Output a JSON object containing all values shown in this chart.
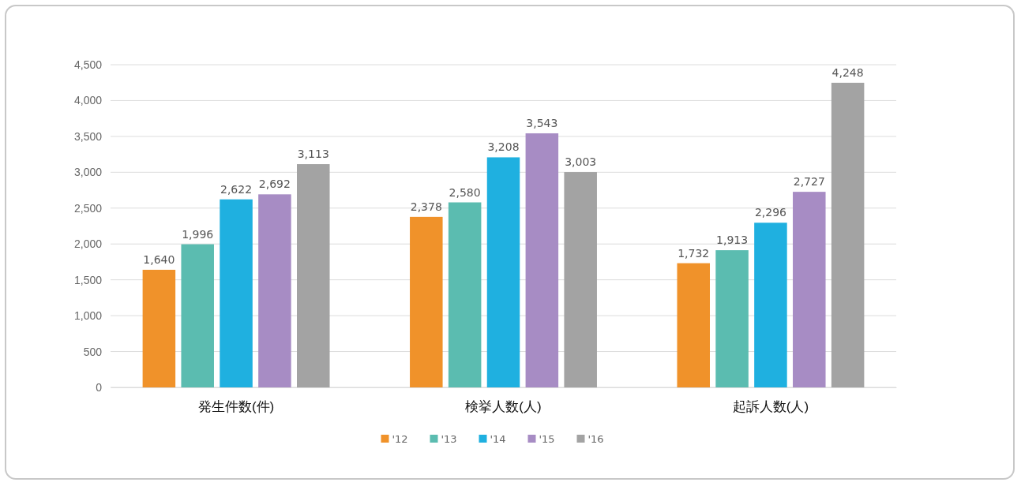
{
  "chart_data": {
    "type": "bar",
    "categories": [
      "発生件数(件)",
      "検挙人数(人)",
      "起訴人数(人)"
    ],
    "series": [
      {
        "name": "'12",
        "color": "#f0922a",
        "values": [
          1640,
          2378,
          1732
        ],
        "value_labels": [
          "1,640",
          "2,378",
          "1,732"
        ]
      },
      {
        "name": "'13",
        "color": "#5bbcb0",
        "values": [
          1996,
          2580,
          1913
        ],
        "value_labels": [
          "1,996",
          "2,580",
          "1,913"
        ]
      },
      {
        "name": "'14",
        "color": "#1fb0e0",
        "values": [
          2622,
          3208,
          2296
        ],
        "value_labels": [
          "2,622",
          "3,208",
          "2,296"
        ]
      },
      {
        "name": "'15",
        "color": "#a78cc4",
        "values": [
          2692,
          3543,
          2727
        ],
        "value_labels": [
          "2,692",
          "3,543",
          "2,727"
        ]
      },
      {
        "name": "'16",
        "color": "#a3a3a3",
        "values": [
          3113,
          3003,
          4248
        ],
        "value_labels": [
          "3,113",
          "3,003",
          "4,248"
        ]
      }
    ],
    "ylim": [
      0,
      4500
    ],
    "yticks": [
      {
        "value": 0,
        "label": "0"
      },
      {
        "value": 500,
        "label": "500"
      },
      {
        "value": 1000,
        "label": "1,000"
      },
      {
        "value": 1500,
        "label": "1,500"
      },
      {
        "value": 2000,
        "label": "2,000"
      },
      {
        "value": 2500,
        "label": "2,500"
      },
      {
        "value": 3000,
        "label": "3,000"
      },
      {
        "value": 3500,
        "label": "3,500"
      },
      {
        "value": 4000,
        "label": "4,000"
      },
      {
        "value": 4500,
        "label": "4,500"
      }
    ],
    "grid": "y",
    "legend": "bottom"
  }
}
